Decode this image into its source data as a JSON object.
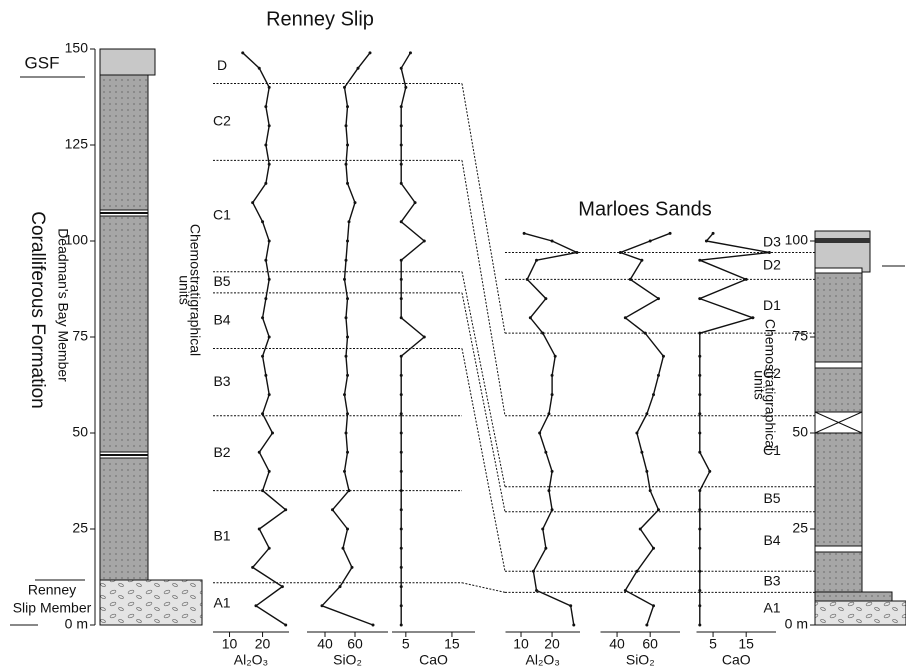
{
  "chart_data": [
    {
      "type": "line",
      "title": "Renney Slip",
      "ylim": [
        0,
        150
      ],
      "yticks": [
        {
          "value": 0,
          "label": "0 m"
        },
        25,
        50,
        75,
        100,
        125,
        150
      ],
      "depths": [
        0,
        5,
        10,
        15,
        20,
        25,
        30,
        35,
        40,
        45,
        50,
        55,
        60,
        65,
        70,
        75,
        80,
        85,
        90,
        95,
        100,
        105,
        110,
        115,
        120,
        125,
        130,
        135,
        140,
        145,
        149
      ],
      "series": [
        {
          "name": "Al₂O₃",
          "color": "#111111",
          "xlim": [
            5,
            28
          ],
          "xticks": [
            10,
            20
          ],
          "values": [
            27,
            18,
            26,
            17,
            22,
            19,
            27,
            20,
            22,
            19,
            23,
            20,
            22,
            21,
            20,
            22,
            20,
            21,
            22,
            21,
            22,
            20,
            17,
            21,
            22,
            21,
            22,
            21,
            22,
            19,
            14
          ]
        },
        {
          "name": "SiO₂",
          "color": "#111111",
          "xlim": [
            28,
            82
          ],
          "xticks": [
            40,
            60
          ],
          "values": [
            72,
            38,
            50,
            58,
            52,
            55,
            45,
            56,
            53,
            55,
            54,
            55,
            53,
            55,
            54,
            55,
            54,
            55,
            53,
            54,
            55,
            56,
            60,
            55,
            54,
            55,
            54,
            55,
            53,
            62,
            70
          ]
        },
        {
          "name": "CaO",
          "color": "#111111",
          "xlim": [
            2,
            20
          ],
          "xticks": [
            5,
            15
          ],
          "values": [
            4,
            4,
            4,
            4,
            4,
            4,
            4,
            4,
            4,
            4,
            4,
            4,
            4,
            4,
            4,
            9,
            4,
            4,
            4,
            4,
            9,
            4,
            7,
            4,
            4,
            4,
            4,
            4,
            5,
            4,
            6
          ]
        }
      ],
      "units": [
        {
          "label": "D"
        },
        {
          "label": "C2",
          "top": 141
        },
        {
          "label": "C1",
          "top": 121
        },
        {
          "label": "B5",
          "top": 92
        },
        {
          "label": "B4",
          "top": 86.5
        },
        {
          "label": "B3",
          "top": 72
        },
        {
          "label": "B2",
          "top": 54.5
        },
        {
          "label": "B1",
          "top": 35
        },
        {
          "label": "A1",
          "top": 11
        }
      ],
      "units_title": [
        "Chemostratigraphical",
        "units"
      ],
      "formation": "Coralliferous Formation",
      "member": "Deadman's Bay Member",
      "top_unit": "GSF",
      "base_member": [
        "Renney",
        "Slip Member"
      ]
    },
    {
      "type": "line",
      "title": "Marloes Sands",
      "ylim": [
        0,
        102
      ],
      "yticks": [
        {
          "value": 0,
          "label": "0 m"
        },
        25,
        50,
        75,
        100
      ],
      "depths": [
        0,
        5,
        9,
        14,
        20,
        25,
        30,
        35,
        40,
        45,
        50,
        55,
        60,
        65,
        70,
        76,
        80,
        85,
        90,
        95,
        97,
        100,
        102
      ],
      "series": [
        {
          "name": "Al₂O₃",
          "color": "#111111",
          "xlim": [
            5,
            29
          ],
          "xticks": [
            10,
            20
          ],
          "values": [
            27,
            26,
            15,
            14,
            18,
            17,
            20,
            19,
            20,
            18,
            16,
            19,
            20,
            20,
            21,
            17,
            13,
            18,
            12,
            15,
            28,
            20,
            11
          ]
        },
        {
          "name": "SiO₂",
          "color": "#111111",
          "xlim": [
            30,
            78
          ],
          "xticks": [
            40,
            60
          ],
          "values": [
            58,
            62,
            45,
            52,
            62,
            54,
            65,
            60,
            58,
            55,
            52,
            58,
            62,
            65,
            68,
            57,
            45,
            65,
            48,
            55,
            42,
            60,
            72
          ]
        },
        {
          "name": "CaO",
          "color": "#111111",
          "xlim": [
            0,
            24
          ],
          "xticks": [
            5,
            15
          ],
          "values": [
            1,
            1,
            1,
            1,
            1,
            1,
            1,
            1,
            4,
            1,
            1,
            1,
            1,
            1,
            1,
            1,
            17,
            1,
            15,
            1,
            22,
            3,
            5
          ]
        }
      ],
      "units": [
        {
          "label": "D3"
        },
        {
          "label": "D2",
          "top": 97
        },
        {
          "label": "D1",
          "top": 90
        },
        {
          "label": "C2",
          "top": 76
        },
        {
          "label": "C1",
          "top": 54.5
        },
        {
          "label": "B5",
          "top": 36
        },
        {
          "label": "B4",
          "top": 29.5
        },
        {
          "label": "B3",
          "top": 14
        },
        {
          "label": "A1",
          "top": 8.5
        }
      ],
      "units_title": [
        "Chemostratigraphical",
        "units"
      ]
    }
  ]
}
